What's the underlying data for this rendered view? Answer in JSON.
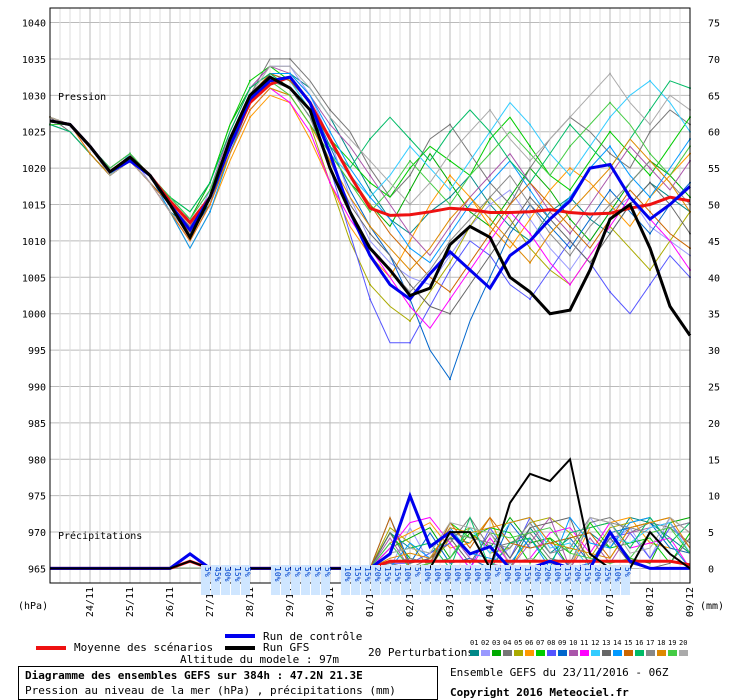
{
  "chart_data": {
    "type": "line",
    "title": "Diagramme des ensembles GEFS sur 384h : 47.2N 21.3E",
    "subtitle": "Pression au niveau de la mer (hPa) , précipitations (mm)",
    "pressure_label": "Pression",
    "precip_label": "Précipitations",
    "left_unit": "(hPa)",
    "right_unit": "(mm)",
    "left_ticks": [
      1040,
      1035,
      1030,
      1025,
      1020,
      1015,
      1010,
      1005,
      1000,
      995,
      990,
      985,
      980,
      975,
      970,
      965
    ],
    "right_ticks": [
      75,
      70,
      65,
      60,
      55,
      50,
      45,
      40,
      35,
      30,
      25,
      20,
      15,
      10,
      5,
      0
    ],
    "x_tick_labels": [
      "24/11",
      "25/11",
      "26/11",
      "27/11",
      "28/11",
      "29/11",
      "30/11",
      "01/12",
      "02/12",
      "03/12",
      "04/12",
      "05/12",
      "06/12",
      "07/12",
      "08/12",
      "09/12"
    ],
    "ylim_pressure": [
      963,
      1042
    ],
    "ylim_precip": [
      -2,
      77
    ],
    "x_range": [
      0,
      64
    ],
    "grid": true,
    "altitude": "Altitude du modele : 97m",
    "precip_percent_labels": [
      "5%",
      "45%",
      "30%",
      "15%",
      "5%",
      "",
      "",
      "10%",
      "5%",
      "5%",
      "5%",
      "5%",
      "5%",
      "",
      "10%",
      "15%",
      "15%",
      "20%",
      "15%",
      "15%",
      "10%",
      "5%",
      "10%",
      "10%",
      "10%",
      "10%",
      "10%",
      "10%",
      "10%",
      "5%",
      "10%",
      "10%",
      "15%",
      "20%",
      "20%",
      "10%",
      "15%",
      "20%",
      "15%",
      "20%",
      "25%",
      "10%",
      "5%"
    ],
    "series": [
      {
        "name": "Moyenne des scénarios",
        "color": "#ee1111",
        "width": 3,
        "x": [
          0,
          2,
          4,
          6,
          8,
          10,
          12,
          14,
          16,
          18,
          20,
          22,
          24,
          26,
          28,
          30,
          32,
          34,
          36,
          38,
          40,
          42,
          44,
          46,
          48,
          50,
          52,
          54,
          56,
          58,
          60,
          62,
          64
        ],
        "y": [
          1026.5,
          1026,
          1023,
          1019.5,
          1021.5,
          1019,
          1015.5,
          1012.5,
          1016,
          1023,
          1029,
          1031.5,
          1032.5,
          1029,
          1024,
          1019,
          1014.5,
          1013.5,
          1013.6,
          1014,
          1014.5,
          1014.3,
          1013.9,
          1013.9,
          1014,
          1014.3,
          1013.9,
          1013.7,
          1013.8,
          1014.5,
          1015,
          1016,
          1015.5
        ]
      },
      {
        "name": "Run de contrôle",
        "color": "#0000ee",
        "width": 3,
        "x": [
          0,
          2,
          4,
          6,
          8,
          10,
          12,
          14,
          16,
          18,
          20,
          22,
          24,
          26,
          28,
          30,
          32,
          34,
          36,
          38,
          40,
          42,
          44,
          46,
          48,
          50,
          52,
          54,
          56,
          58,
          60,
          62,
          64
        ],
        "y": [
          1026.5,
          1026,
          1023,
          1019.5,
          1021,
          1019,
          1015,
          1011.5,
          1016,
          1023,
          1029.5,
          1032,
          1032.5,
          1029,
          1022,
          1014,
          1008,
          1004,
          1002,
          1005.5,
          1008.5,
          1006,
          1003.5,
          1008,
          1010,
          1013,
          1015.5,
          1020,
          1020.5,
          1016,
          1013,
          1015,
          1017.5
        ]
      },
      {
        "name": "Run GFS",
        "color": "#000000",
        "width": 3,
        "x": [
          0,
          2,
          4,
          6,
          8,
          10,
          12,
          14,
          16,
          18,
          20,
          22,
          24,
          26,
          28,
          30,
          32,
          34,
          36,
          38,
          40,
          42,
          44,
          46,
          48,
          50,
          52,
          54,
          56,
          58,
          60,
          62,
          64
        ],
        "y": [
          1026.5,
          1026,
          1023,
          1019.5,
          1021.5,
          1019,
          1015,
          1010.5,
          1016,
          1024,
          1030,
          1032.5,
          1031,
          1028,
          1020,
          1014,
          1009,
          1006,
          1002.5,
          1003.5,
          1009.5,
          1012,
          1010.5,
          1005,
          1003,
          1000,
          1000.5,
          1006,
          1013,
          1015,
          1009,
          1001,
          997
        ]
      }
    ],
    "perturbations": [
      [
        1027,
        1026,
        1023,
        1019,
        1021,
        1019,
        1014,
        1012,
        1015,
        1022,
        1029,
        1033,
        1033,
        1031,
        1027,
        1022,
        1017,
        1013,
        1011,
        1014,
        1016,
        1019,
        1015,
        1012,
        1010,
        1014,
        1016,
        1013,
        1011,
        1015,
        1018,
        1016,
        1014
      ],
      [
        1027,
        1026,
        1023,
        1020,
        1022,
        1018,
        1015,
        1011,
        1017,
        1025,
        1031,
        1034,
        1034,
        1030,
        1024,
        1016,
        1010,
        1007,
        1005,
        1004,
        1008,
        1012,
        1015,
        1017,
        1013,
        1009,
        1006,
        1010,
        1014,
        1016,
        1012,
        1010,
        1008
      ],
      [
        1026,
        1025,
        1022,
        1019,
        1021,
        1019,
        1016,
        1013,
        1018,
        1026,
        1031,
        1033,
        1031,
        1028,
        1022,
        1018,
        1015,
        1012,
        1017,
        1022,
        1018,
        1014,
        1012,
        1016,
        1020,
        1017,
        1013,
        1010,
        1014,
        1018,
        1021,
        1019,
        1016
      ],
      [
        1027,
        1026,
        1023,
        1019,
        1021,
        1018,
        1014,
        1010,
        1015,
        1023,
        1030,
        1035,
        1035,
        1032,
        1028,
        1025,
        1020,
        1016,
        1019,
        1024,
        1026,
        1022,
        1018,
        1015,
        1020,
        1024,
        1027,
        1025,
        1022,
        1020,
        1025,
        1028,
        1026
      ],
      [
        1026,
        1026,
        1023,
        1020,
        1022,
        1019,
        1015,
        1012,
        1016,
        1022,
        1028,
        1031,
        1030,
        1026,
        1018,
        1010,
        1004,
        1001,
        999,
        1003,
        1007,
        1012,
        1016,
        1013,
        1009,
        1006,
        1004,
        1008,
        1012,
        1009,
        1006,
        1010,
        1014
      ],
      [
        1027,
        1026,
        1022,
        1019,
        1021,
        1018,
        1014,
        1009,
        1014,
        1021,
        1027,
        1030,
        1029,
        1024,
        1018,
        1012,
        1008,
        1005,
        1010,
        1015,
        1019,
        1016,
        1012,
        1009,
        1013,
        1017,
        1020,
        1018,
        1015,
        1012,
        1016,
        1019,
        1022
      ],
      [
        1027,
        1026,
        1023,
        1020,
        1022,
        1019,
        1016,
        1014,
        1018,
        1026,
        1032,
        1034,
        1032,
        1028,
        1024,
        1021,
        1018,
        1016,
        1020,
        1023,
        1021,
        1019,
        1024,
        1027,
        1023,
        1019,
        1017,
        1021,
        1025,
        1022,
        1019,
        1023,
        1027
      ],
      [
        1026,
        1025,
        1022,
        1019,
        1021,
        1019,
        1015,
        1012,
        1016,
        1024,
        1030,
        1032,
        1031,
        1027,
        1020,
        1011,
        1002,
        996,
        996,
        1001,
        1006,
        1010,
        1008,
        1004,
        1002,
        1006,
        1010,
        1007,
        1003,
        1000,
        1004,
        1008,
        1005
      ],
      [
        1027,
        1026,
        1023,
        1019,
        1021,
        1018,
        1014,
        1011,
        1015,
        1023,
        1029,
        1033,
        1032,
        1029,
        1023,
        1017,
        1012,
        1008,
        1002,
        995,
        991,
        999,
        1005,
        1011,
        1015,
        1012,
        1009,
        1013,
        1017,
        1014,
        1011,
        1015,
        1018
      ],
      [
        1027,
        1026,
        1023,
        1020,
        1022,
        1019,
        1015,
        1013,
        1017,
        1025,
        1031,
        1034,
        1033,
        1030,
        1026,
        1023,
        1019,
        1015,
        1011,
        1008,
        1012,
        1016,
        1019,
        1022,
        1018,
        1014,
        1011,
        1015,
        1019,
        1023,
        1020,
        1017,
        1021
      ],
      [
        1026,
        1026,
        1022,
        1019,
        1021,
        1018,
        1014,
        1010,
        1015,
        1022,
        1028,
        1031,
        1029,
        1025,
        1018,
        1013,
        1009,
        1005,
        1001,
        998,
        1002,
        1006,
        1010,
        1014,
        1011,
        1007,
        1004,
        1008,
        1012,
        1016,
        1013,
        1010,
        1006
      ],
      [
        1027,
        1026,
        1023,
        1019,
        1022,
        1019,
        1016,
        1013,
        1017,
        1024,
        1030,
        1033,
        1032,
        1028,
        1022,
        1019,
        1016,
        1019,
        1023,
        1020,
        1017,
        1021,
        1025,
        1029,
        1026,
        1022,
        1019,
        1023,
        1027,
        1030,
        1032,
        1029,
        1025
      ],
      [
        1027,
        1025,
        1022,
        1019,
        1021,
        1018,
        1015,
        1012,
        1016,
        1023,
        1029,
        1032,
        1031,
        1027,
        1021,
        1015,
        1011,
        1008,
        1004,
        1001,
        1000,
        1004,
        1008,
        1012,
        1016,
        1013,
        1010,
        1007,
        1011,
        1015,
        1018,
        1015,
        1011
      ],
      [
        1026,
        1026,
        1023,
        1020,
        1022,
        1019,
        1014,
        1009,
        1014,
        1022,
        1029,
        1033,
        1033,
        1030,
        1025,
        1020,
        1016,
        1013,
        1009,
        1007,
        1011,
        1015,
        1018,
        1021,
        1017,
        1013,
        1016,
        1020,
        1023,
        1019,
        1016,
        1020,
        1024
      ],
      [
        1027,
        1026,
        1023,
        1019,
        1021,
        1018,
        1015,
        1011,
        1016,
        1023,
        1030,
        1033,
        1032,
        1029,
        1024,
        1019,
        1015,
        1011,
        1008,
        1005,
        1003,
        1007,
        1011,
        1015,
        1018,
        1015,
        1012,
        1009,
        1013,
        1017,
        1014,
        1011,
        1009
      ],
      [
        1026,
        1025,
        1022,
        1019,
        1021,
        1019,
        1016,
        1014,
        1018,
        1025,
        1031,
        1033,
        1031,
        1027,
        1023,
        1020,
        1024,
        1027,
        1024,
        1021,
        1025,
        1028,
        1025,
        1021,
        1018,
        1022,
        1026,
        1023,
        1020,
        1024,
        1028,
        1032,
        1031
      ],
      [
        1027,
        1026,
        1023,
        1020,
        1022,
        1019,
        1015,
        1012,
        1016,
        1023,
        1029,
        1032,
        1031,
        1027,
        1020,
        1014,
        1009,
        1006,
        1003,
        1006,
        1010,
        1013,
        1016,
        1019,
        1015,
        1011,
        1008,
        1012,
        1015,
        1018,
        1021,
        1018,
        1015
      ],
      [
        1027,
        1026,
        1022,
        1019,
        1021,
        1018,
        1014,
        1010,
        1015,
        1022,
        1028,
        1031,
        1030,
        1026,
        1021,
        1016,
        1012,
        1009,
        1006,
        1009,
        1013,
        1016,
        1013,
        1010,
        1007,
        1011,
        1014,
        1017,
        1020,
        1024,
        1021,
        1018,
        1014
      ],
      [
        1026,
        1026,
        1023,
        1020,
        1022,
        1019,
        1016,
        1013,
        1017,
        1024,
        1030,
        1032,
        1030,
        1026,
        1022,
        1018,
        1014,
        1017,
        1021,
        1018,
        1015,
        1019,
        1022,
        1025,
        1022,
        1019,
        1023,
        1026,
        1029,
        1026,
        1022,
        1019,
        1023
      ],
      [
        1027,
        1026,
        1023,
        1019,
        1021,
        1018,
        1014,
        1011,
        1016,
        1024,
        1030,
        1034,
        1034,
        1031,
        1027,
        1024,
        1021,
        1018,
        1015,
        1018,
        1022,
        1025,
        1028,
        1024,
        1021,
        1024,
        1027,
        1030,
        1033,
        1029,
        1026,
        1030,
        1028
      ]
    ],
    "perturbation_colors": [
      "#008888",
      "#9999ff",
      "#00aa00",
      "#777777",
      "#aaaa00",
      "#ff9900",
      "#00cc00",
      "#5555ff",
      "#0066cc",
      "#aa55aa",
      "#ff00ff",
      "#33ccff",
      "#666666",
      "#0099ff",
      "#cc6600",
      "#00bb66",
      "#888888",
      "#dd8800",
      "#44cc44",
      "#aaaaaa"
    ],
    "precip": {
      "mean": [
        0,
        0,
        0,
        0,
        0,
        0,
        0,
        1,
        0,
        0,
        0,
        0,
        0,
        0,
        0,
        0,
        0,
        1,
        1,
        1,
        1,
        1,
        1,
        1,
        1,
        1,
        1,
        1,
        1,
        1,
        1,
        1,
        0.5
      ],
      "control": [
        0,
        0,
        0,
        0,
        0,
        0,
        0,
        2,
        0,
        0,
        0,
        0,
        0,
        0,
        0,
        0,
        0,
        2,
        10,
        3,
        5,
        2,
        3,
        0,
        0,
        1,
        0,
        0,
        5,
        1,
        0,
        0,
        0
      ],
      "gfs": [
        0,
        0,
        0,
        0,
        0,
        0,
        0,
        1,
        0,
        0,
        0,
        0,
        0,
        0,
        0,
        0,
        0,
        0,
        0,
        0,
        5,
        5,
        0,
        9,
        13,
        12,
        15,
        2,
        0,
        0,
        5,
        2,
        0
      ]
    }
  },
  "legend": {
    "mean_label": "Moyenne des scénarios",
    "control_label": "Run de contrôle",
    "gfs_label": "Run GFS",
    "perturbations_label": "20 Perturbations",
    "perturbation_numbers": [
      "01",
      "02",
      "03",
      "04",
      "05",
      "06",
      "07",
      "08",
      "09",
      "10",
      "11",
      "12",
      "13",
      "14",
      "15",
      "16",
      "17",
      "18",
      "19",
      "20"
    ]
  },
  "footer": {
    "title": "Diagramme des ensembles GEFS sur 384h : 47.2N 21.3E",
    "subtitle": "Pression au niveau de la mer (hPa) , précipitations (mm)",
    "run_info": "Ensemble GEFS du 23/11/2016 - 06Z",
    "copyright": "Copyright 2016 Meteociel.fr"
  }
}
